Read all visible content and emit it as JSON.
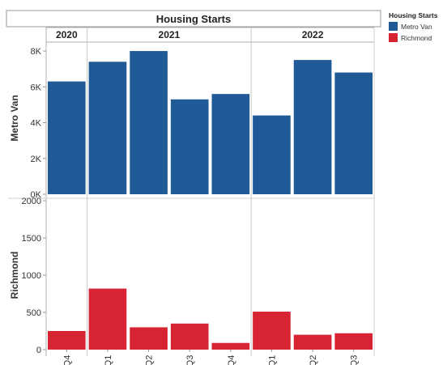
{
  "chart_data": {
    "type": "bar",
    "title": "Housing Starts",
    "years": [
      {
        "label": "2020",
        "quarters": [
          "Q4"
        ]
      },
      {
        "label": "2021",
        "quarters": [
          "Q1",
          "Q2",
          "Q3",
          "Q4"
        ]
      },
      {
        "label": "2022",
        "quarters": [
          "Q1",
          "Q2",
          "Q3"
        ]
      }
    ],
    "categories": [
      "Q4",
      "Q1",
      "Q2",
      "Q3",
      "Q4",
      "Q1",
      "Q2",
      "Q3"
    ],
    "tick_label_display": [
      "Q4",
      "Q1",
      "Q2",
      "Q3",
      "Q4",
      "Q1",
      "Q2",
      "Q3"
    ],
    "panels": [
      {
        "name": "Metro Van",
        "ylabel": "Metro Van",
        "color": "#1F5A96",
        "ylim": [
          0,
          8500
        ],
        "yticks": [
          0,
          2000,
          4000,
          6000,
          8000
        ],
        "ytick_labels": [
          "0K",
          "2K",
          "4K",
          "6K",
          "8K"
        ],
        "values": [
          6300,
          7400,
          8000,
          5300,
          5600,
          4400,
          7500,
          6800
        ]
      },
      {
        "name": "Richmond",
        "ylabel": "Richmond",
        "color": "#D62433",
        "ylim": [
          0,
          2000
        ],
        "yticks": [
          0,
          500,
          1000,
          1500,
          2000
        ],
        "ytick_labels": [
          "0",
          "500",
          "1000",
          "1500",
          "2000"
        ],
        "values": [
          250,
          820,
          300,
          350,
          90,
          510,
          200,
          220
        ]
      }
    ],
    "legend": {
      "title": "Housing Starts",
      "position": "top-right",
      "items": [
        {
          "label": "Metro Van",
          "color": "#1F5A96"
        },
        {
          "label": "Richmond",
          "color": "#D62433"
        }
      ]
    },
    "grid": false
  }
}
